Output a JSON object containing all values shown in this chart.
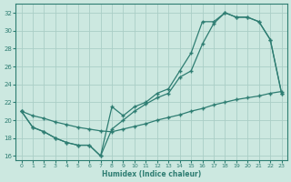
{
  "xlabel": "Humidex (Indice chaleur)",
  "bg_color": "#cce8e0",
  "grid_color": "#aacec6",
  "line_color": "#2e7d72",
  "xlim": [
    -0.5,
    23.5
  ],
  "ylim": [
    15.5,
    33
  ],
  "yticks": [
    16,
    18,
    20,
    22,
    24,
    26,
    28,
    30,
    32
  ],
  "xticks": [
    0,
    1,
    2,
    3,
    4,
    5,
    6,
    7,
    8,
    9,
    10,
    11,
    12,
    13,
    14,
    15,
    16,
    17,
    18,
    19,
    20,
    21,
    22,
    23
  ],
  "line1_x": [
    0,
    1,
    2,
    3,
    4,
    5,
    6,
    7,
    8,
    9,
    10,
    11,
    12,
    13,
    14,
    15,
    16,
    17,
    18,
    19,
    20,
    21,
    22,
    23
  ],
  "line1_y": [
    21.0,
    19.2,
    18.7,
    18.0,
    17.5,
    17.2,
    17.2,
    16.0,
    21.5,
    20.5,
    21.5,
    22.0,
    23.0,
    23.5,
    25.5,
    27.5,
    31.0,
    31.0,
    32.0,
    31.5,
    31.5,
    31.0,
    29.0,
    23.0
  ],
  "line2_x": [
    0,
    1,
    2,
    3,
    4,
    5,
    6,
    7,
    8,
    9,
    10,
    11,
    12,
    13,
    14,
    15,
    16,
    17,
    18,
    19,
    20,
    21,
    22,
    23
  ],
  "line2_y": [
    21.0,
    19.2,
    18.7,
    18.0,
    17.5,
    17.2,
    17.2,
    16.0,
    19.0,
    20.0,
    21.0,
    21.8,
    22.5,
    23.0,
    24.8,
    25.5,
    28.5,
    30.8,
    32.0,
    31.5,
    31.5,
    31.0,
    29.0,
    23.0
  ],
  "line3_x": [
    0,
    1,
    2,
    3,
    4,
    5,
    6,
    7,
    8,
    9,
    10,
    11,
    12,
    13,
    14,
    15,
    16,
    17,
    18,
    19,
    20,
    21,
    22,
    23
  ],
  "line3_y": [
    21.0,
    20.5,
    20.2,
    19.8,
    19.5,
    19.2,
    19.0,
    18.8,
    18.7,
    19.0,
    19.3,
    19.6,
    20.0,
    20.3,
    20.6,
    21.0,
    21.3,
    21.7,
    22.0,
    22.3,
    22.5,
    22.7,
    23.0,
    23.2
  ]
}
